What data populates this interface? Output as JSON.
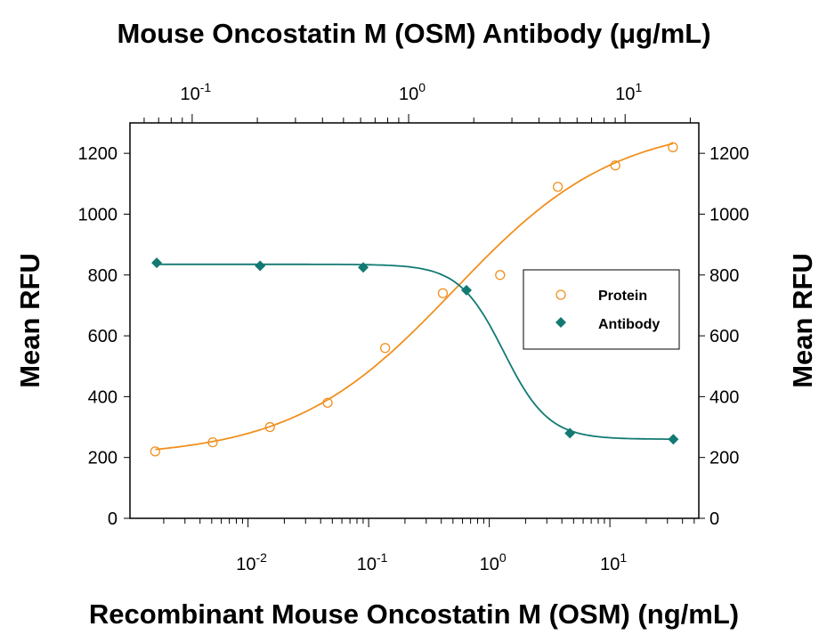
{
  "chart_data": {
    "type": "scatter",
    "title": "",
    "top_xlabel": "Mouse Oncostatin M (OSM) Antibody (μg/mL)",
    "xlabel": "Recombinant Mouse Oncostatin M (OSM) (ng/mL)",
    "ylabel": "Mean RFU",
    "ylabel_right": "Mean RFU",
    "x_scale": "log",
    "top_x_scale": "log",
    "xlim": [
      0.00105,
      54.6
    ],
    "top_xlim": [
      0.0516,
      21.9
    ],
    "ylim": [
      0,
      1300
    ],
    "yticks": [
      "0",
      "200",
      "400",
      "600",
      "800",
      "1000",
      "1200"
    ],
    "xticks": [
      {
        "base": "10",
        "exp": "-2"
      },
      {
        "base": "10",
        "exp": "-1"
      },
      {
        "base": "10",
        "exp": "0"
      },
      {
        "base": "10",
        "exp": "1"
      }
    ],
    "top_xticks": [
      {
        "base": "10",
        "exp": "-1"
      },
      {
        "base": "10",
        "exp": "0"
      },
      {
        "base": "10",
        "exp": "1"
      }
    ],
    "grid": false,
    "legend_position": "center-right",
    "series": [
      {
        "name": "Protein",
        "axis": "bottom",
        "marker": "open-circle",
        "color": "#F0901E",
        "x": [
          0.0017,
          0.0051,
          0.0152,
          0.0457,
          0.137,
          0.412,
          1.23,
          3.7,
          11.1,
          33.3
        ],
        "y": [
          220,
          250,
          300,
          380,
          560,
          740,
          800,
          1090,
          1160,
          1220
        ]
      },
      {
        "name": "Antibody",
        "axis": "top",
        "marker": "filled-diamond",
        "color": "#127A72",
        "x": [
          0.0686,
          0.206,
          0.617,
          1.85,
          5.56,
          16.7
        ],
        "y": [
          840,
          830,
          825,
          750,
          280,
          260
        ]
      }
    ]
  }
}
